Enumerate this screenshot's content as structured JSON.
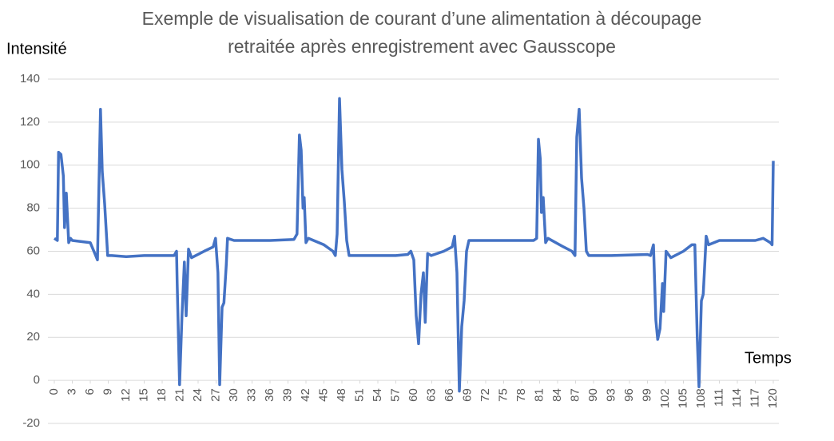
{
  "chart_data": {
    "type": "line",
    "title": [
      "Exemple de visualisation de courant d’une alimentation à découpage",
      "retraitée après enregistrement avec Gausscope"
    ],
    "y_label": "Intensité",
    "x_label": "Temps",
    "xlim": [
      0,
      120
    ],
    "xticks": [
      0,
      3,
      6,
      9,
      12,
      15,
      18,
      21,
      24,
      27,
      30,
      33,
      36,
      39,
      42,
      45,
      48,
      51,
      54,
      57,
      60,
      63,
      66,
      69,
      72,
      75,
      78,
      81,
      84,
      87,
      90,
      93,
      96,
      99,
      102,
      105,
      108,
      111,
      114,
      117,
      120
    ],
    "ylim": [
      -20,
      140
    ],
    "yticks": [
      -20,
      0,
      20,
      40,
      60,
      80,
      100,
      120,
      140
    ],
    "grid": true,
    "series": [
      {
        "color": "#4472c4",
        "x": [
          0,
          0.5,
          0.7,
          1.1,
          1.5,
          1.7,
          2.0,
          2.4,
          2.7,
          3,
          6,
          6.9,
          7.2,
          7.7,
          8.0,
          8.4,
          8.9,
          9.6,
          12,
          15,
          18,
          20,
          20.4,
          20.5,
          20.9,
          21.3,
          21.7,
          22.0,
          22.4,
          22.9,
          25,
          26.5,
          26.9,
          27.3,
          27.6,
          28,
          28.3,
          28.7,
          28.9,
          30,
          36,
          40,
          40.5,
          40.9,
          41.2,
          41.5,
          41.7,
          42,
          42.4,
          45,
          46.5,
          46.9,
          47.2,
          47.6,
          48,
          48.4,
          48.8,
          49.2,
          51,
          57,
          59,
          59.5,
          60,
          60.4,
          60.8,
          61.2,
          61.6,
          61.9,
          62.3,
          62.9,
          65,
          66.4,
          66.8,
          67.2,
          67.6,
          68,
          68.4,
          68.8,
          69.2,
          72,
          78,
          80,
          80.5,
          80.8,
          81.1,
          81.3,
          81.6,
          82,
          82.4,
          85,
          86.4,
          86.9,
          87.2,
          87.6,
          88,
          88.4,
          88.8,
          89.2,
          93,
          99,
          99.5,
          100,
          100.4,
          100.7,
          101.1,
          101.5,
          101.7,
          102.1,
          102.9,
          105,
          106.4,
          106.9,
          107.3,
          107.6,
          108,
          108.3,
          108.8,
          109.2,
          111,
          117,
          118.3,
          119.5,
          119.8,
          120
        ],
        "values": [
          66,
          65,
          106,
          105,
          95,
          71,
          87,
          64,
          66,
          65,
          64,
          58,
          56,
          126,
          97,
          82,
          58,
          58,
          57.5,
          58,
          58,
          58,
          60,
          45,
          -2,
          30,
          55,
          30,
          61,
          57,
          60,
          62,
          66,
          50,
          -2,
          34,
          36,
          54,
          66,
          65,
          65,
          65.5,
          68,
          114,
          107,
          80,
          85,
          64,
          66,
          63,
          60,
          58,
          68,
          131,
          98,
          83,
          65,
          58,
          58,
          58,
          58.5,
          60,
          56,
          30,
          17,
          40,
          50,
          27,
          59,
          58,
          60,
          62,
          67,
          50,
          -5,
          25,
          37,
          60,
          65,
          65,
          65,
          65,
          66,
          112,
          103,
          78,
          85,
          64,
          66,
          62,
          60,
          58,
          113,
          126,
          94,
          80,
          60,
          58,
          58,
          58.5,
          58,
          63,
          28,
          19,
          24,
          45,
          32,
          60,
          57,
          60,
          63,
          63,
          20,
          -3,
          37,
          40,
          67,
          63,
          65,
          65,
          66,
          64,
          63,
          102
        ]
      }
    ]
  }
}
